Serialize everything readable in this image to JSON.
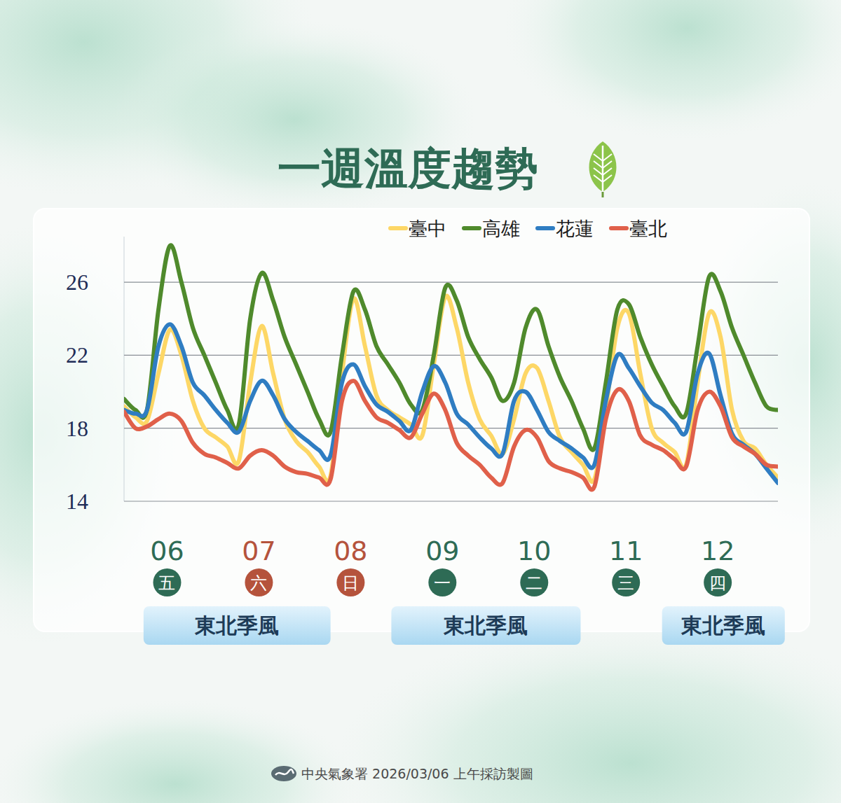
{
  "chart_data": {
    "type": "line",
    "title": "一週溫度趨勢",
    "source": "中央氣象署 2026/03/06 上午採訪製圖",
    "categories": [
      null,
      null,
      null,
      null,
      "06",
      null,
      null,
      null,
      null,
      null,
      null,
      null,
      "07",
      null,
      null,
      null,
      null,
      null,
      null,
      null,
      "08",
      null,
      null,
      null,
      null,
      null,
      null,
      null,
      "09",
      null,
      null,
      null,
      null,
      null,
      null,
      null,
      "10",
      null,
      null,
      null,
      null,
      null,
      null,
      null,
      "11",
      null,
      null,
      null,
      null,
      null,
      null,
      null,
      "12",
      null,
      null,
      null,
      null,
      null
    ],
    "day_markers": {
      "labels": [
        "五",
        "六",
        "日",
        "一",
        "二",
        "三",
        "四"
      ],
      "colors": [
        "#2e6b55",
        "#b5533c",
        "#b5533c",
        "#2e6b55",
        "#2e6b55",
        "#2e6b55",
        "#2e6b55"
      ]
    },
    "series": [
      {
        "name": "臺中",
        "color": "#fdd766",
        "values": [
          19.2,
          18.6,
          18.4,
          21.0,
          23.4,
          22.0,
          19.5,
          18.0,
          17.5,
          17.0,
          16.2,
          20.5,
          23.6,
          21.0,
          18.5,
          17.3,
          16.7,
          15.9,
          15.4,
          21.0,
          25.1,
          22.5,
          19.8,
          19.0,
          18.6,
          18.2,
          17.6,
          21.5,
          25.2,
          23.5,
          20.5,
          18.5,
          17.6,
          16.6,
          18.5,
          21.0,
          21.3,
          19.5,
          17.5,
          16.7,
          16.0,
          15.2,
          19.0,
          23.5,
          24.3,
          21.0,
          18.0,
          17.2,
          16.7,
          16.0,
          20.5,
          24.3,
          23.0,
          19.0,
          17.3,
          16.9,
          16.0,
          15.3
        ]
      },
      {
        "name": "高雄",
        "color": "#4f8a2c",
        "values": [
          19.6,
          19.0,
          19.0,
          24.5,
          28.0,
          26.0,
          23.5,
          22.0,
          20.5,
          19.0,
          18.2,
          24.0,
          26.5,
          25.0,
          23.0,
          21.5,
          20.0,
          18.5,
          17.8,
          22.0,
          25.5,
          24.5,
          22.5,
          21.5,
          20.5,
          19.3,
          19.0,
          22.0,
          25.7,
          25.0,
          23.0,
          21.8,
          20.8,
          19.5,
          20.5,
          23.5,
          24.5,
          22.5,
          20.8,
          19.5,
          18.0,
          16.9,
          20.5,
          24.5,
          24.8,
          23.0,
          21.5,
          20.3,
          19.2,
          18.8,
          22.5,
          26.3,
          25.5,
          23.5,
          22.0,
          20.5,
          19.2,
          19.0
        ]
      },
      {
        "name": "花蓮",
        "color": "#2f7dc2",
        "values": [
          19.0,
          18.8,
          19.0,
          22.5,
          23.7,
          22.5,
          20.5,
          19.8,
          19.0,
          18.3,
          17.8,
          19.5,
          20.6,
          19.8,
          18.5,
          17.8,
          17.3,
          16.8,
          16.5,
          20.5,
          21.5,
          20.3,
          19.3,
          18.9,
          18.4,
          17.9,
          20.0,
          21.4,
          20.5,
          18.8,
          18.2,
          17.5,
          16.9,
          16.6,
          19.5,
          20.0,
          19.0,
          17.8,
          17.3,
          16.9,
          16.4,
          16.0,
          19.5,
          22.0,
          21.3,
          20.3,
          19.4,
          19.0,
          18.3,
          17.8,
          21.0,
          22.1,
          19.8,
          17.7,
          17.1,
          16.6,
          15.8,
          15.0
        ]
      },
      {
        "name": "臺北",
        "color": "#e0604a",
        "values": [
          18.9,
          18.0,
          18.1,
          18.5,
          18.8,
          18.4,
          17.2,
          16.6,
          16.4,
          16.1,
          15.8,
          16.5,
          16.8,
          16.5,
          15.9,
          15.6,
          15.5,
          15.3,
          15.2,
          19.5,
          20.6,
          19.5,
          18.6,
          18.3,
          17.9,
          17.5,
          18.8,
          19.9,
          19.0,
          17.2,
          16.5,
          16.0,
          15.3,
          15.0,
          17.0,
          17.9,
          17.5,
          16.2,
          15.8,
          15.6,
          15.3,
          14.8,
          18.5,
          20.1,
          19.5,
          17.6,
          17.1,
          16.8,
          16.3,
          15.9,
          19.0,
          20.0,
          19.2,
          17.5,
          17.0,
          16.6,
          16.0,
          15.9
        ]
      }
    ],
    "ylim": [
      14,
      28.5
    ],
    "yticks": [
      14,
      18,
      22,
      26
    ],
    "grid": true,
    "legend": "top",
    "annotations": [
      {
        "text": "東北季風",
        "x_start": 1.7,
        "x_end": 18
      },
      {
        "text": "東北季風",
        "x_start": 23.3,
        "x_end": 39.8
      },
      {
        "text": "東北季風",
        "x_start": 46.9,
        "x_end": 57.6
      }
    ]
  }
}
